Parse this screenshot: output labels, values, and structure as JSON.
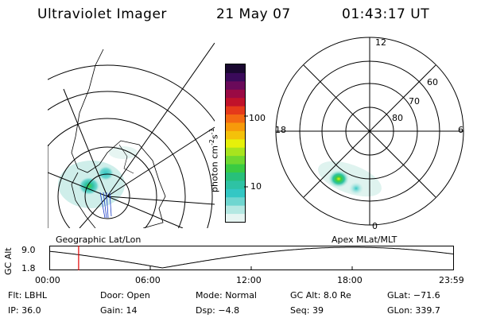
{
  "header": {
    "instrument": "Ultraviolet Imager",
    "date": "21 May 07",
    "time": "01:43:17 UT"
  },
  "colorbar": {
    "unit_label": "photon cm",
    "unit_sup1": "-2",
    "unit_s": "s",
    "unit_sup2": "-1",
    "tick_100": "100",
    "tick_10": "10",
    "colors": [
      "#e6f5f2",
      "#b4e8e2",
      "#6fd6d0",
      "#33c7c4",
      "#2ec2a4",
      "#28c07a",
      "#3acb42",
      "#6fd830",
      "#a8e41e",
      "#e6f00a",
      "#f4c10a",
      "#f79a0a",
      "#f36a12",
      "#e53a1a",
      "#c0122a",
      "#9a0a44",
      "#6a0a5a",
      "#3a0a5a",
      "#1a0830"
    ]
  },
  "map_labels": {
    "left": "Geographic Lat/Lon",
    "right": "Apex MLat/MLT"
  },
  "polar": {
    "mlt_12": "12",
    "mlt_18": "18",
    "mlt_6": "6",
    "mlt_0": "0",
    "lat_60": "60",
    "lat_70": "70",
    "lat_80": "80"
  },
  "altitude_plot": {
    "axis_label": "GC Alt",
    "y_max": "9.0",
    "y_min": "1.8",
    "x_ticks": [
      "00:00",
      "06:00",
      "12:00",
      "18:00",
      "23:59"
    ],
    "current_time_hours": 1.72
  },
  "info": {
    "filter_label": "Flt:",
    "filter_value": "LBHL",
    "door_label": "Door:",
    "door_value": "Open",
    "mode_label": "Mode:",
    "mode_value": "Normal",
    "gcalt_label": "GC Alt:",
    "gcalt_value": "8.0 Re",
    "glat_label": "GLat:",
    "glat_value": "−71.6",
    "ip_label": "IP:",
    "ip_value": "36.0",
    "gain_label": "Gain:",
    "gain_value": "14",
    "dsp_label": "Dsp:",
    "dsp_value": "−4.8",
    "seq_label": "Seq:",
    "seq_value": "39",
    "glon_label": "GLon:",
    "glon_value": "339.7"
  }
}
